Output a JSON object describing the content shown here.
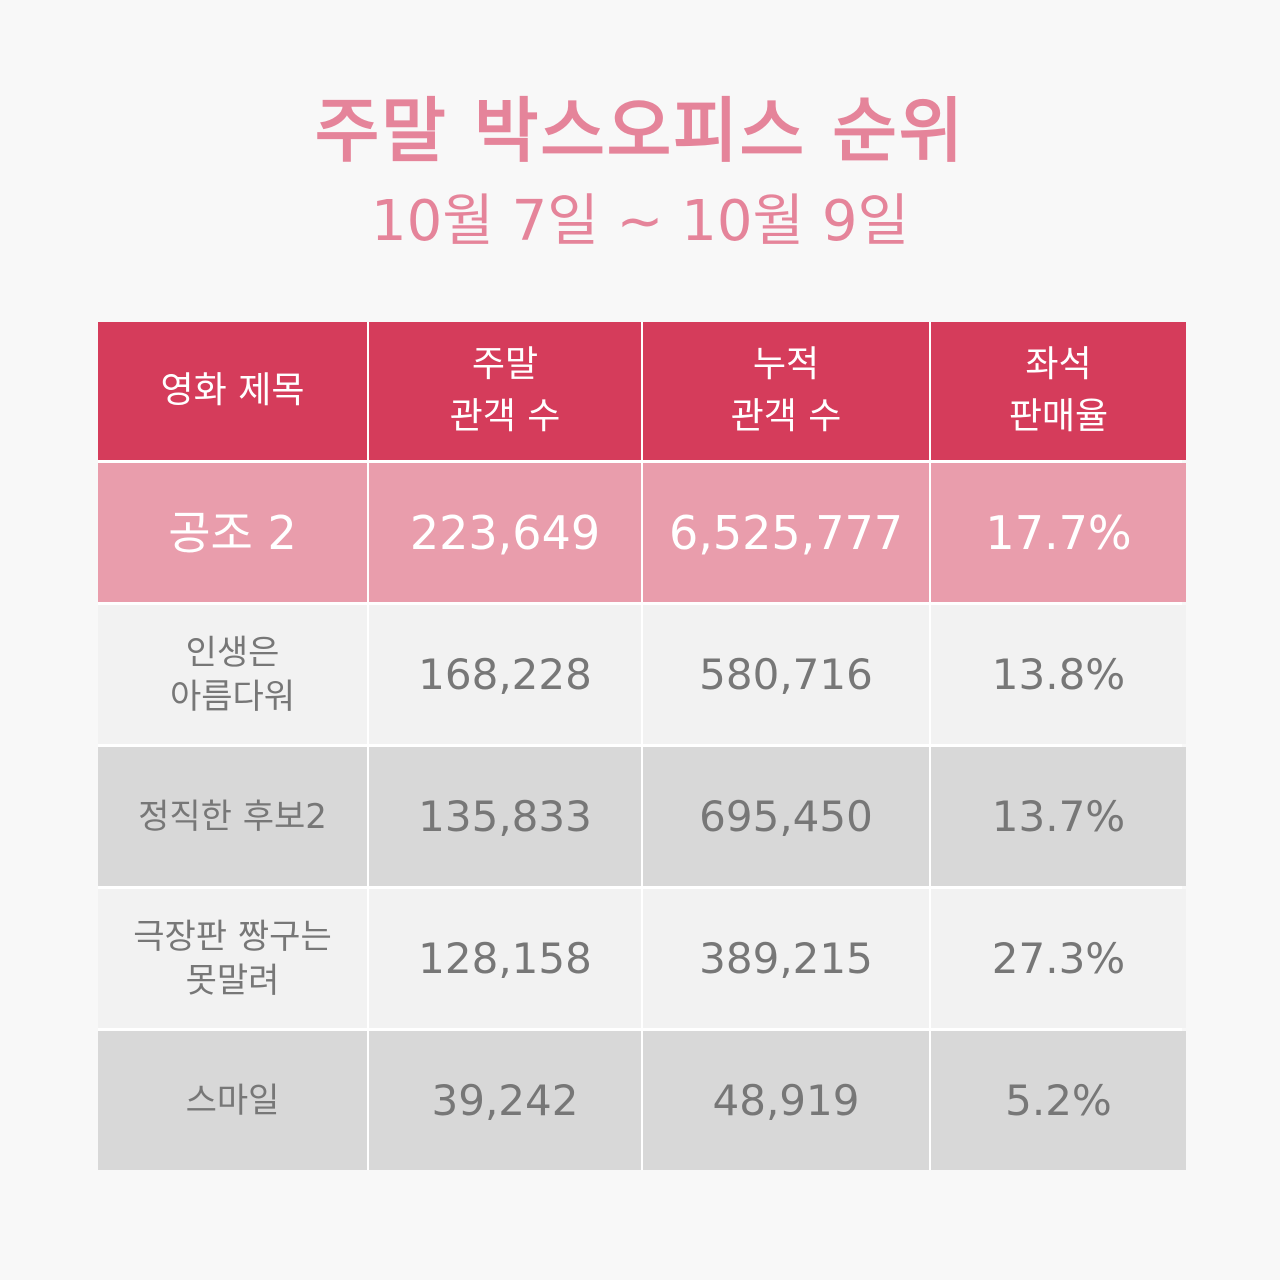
{
  "header": {
    "title": "주말 박스오피스 순위",
    "subtitle": "10월 7일 ~ 10월 9일"
  },
  "colors": {
    "title": "#e5849a",
    "header_bg": "#d53c5b",
    "top_row_bg": "#e99dac",
    "row_light_bg": "#f2f2f2",
    "row_dark_bg": "#d8d8d8",
    "body_text": "#777777"
  },
  "table": {
    "columns": [
      "영화 제목",
      "주말\n관객 수",
      "누적\n관객 수",
      "좌석\n판매율"
    ],
    "rows": [
      {
        "title": "공조 2",
        "weekend": "223,649",
        "cumulative": "6,525,777",
        "seat_rate": "17.7%"
      },
      {
        "title": "인생은\n아름다워",
        "weekend": "168,228",
        "cumulative": "580,716",
        "seat_rate": "13.8%"
      },
      {
        "title": "정직한 후보2",
        "weekend": "135,833",
        "cumulative": "695,450",
        "seat_rate": "13.7%"
      },
      {
        "title": "극장판 짱구는\n못말려",
        "weekend": "128,158",
        "cumulative": "389,215",
        "seat_rate": "27.3%"
      },
      {
        "title": "스마일",
        "weekend": "39,242",
        "cumulative": "48,919",
        "seat_rate": "5.2%"
      }
    ]
  },
  "chart_data": {
    "type": "table",
    "title": "주말 박스오피스 순위",
    "subtitle": "10월 7일 ~ 10월 9일",
    "columns": [
      "영화 제목",
      "주말 관객 수",
      "누적 관객 수",
      "좌석 판매율"
    ],
    "rows": [
      [
        "공조 2",
        223649,
        6525777,
        17.7
      ],
      [
        "인생은 아름다워",
        168228,
        580716,
        13.8
      ],
      [
        "정직한 후보2",
        135833,
        695450,
        13.7
      ],
      [
        "극장판 짱구는 못말려",
        128158,
        389215,
        27.3
      ],
      [
        "스마일",
        39242,
        48919,
        5.2
      ]
    ],
    "units": {
      "seat_rate": "%"
    }
  }
}
